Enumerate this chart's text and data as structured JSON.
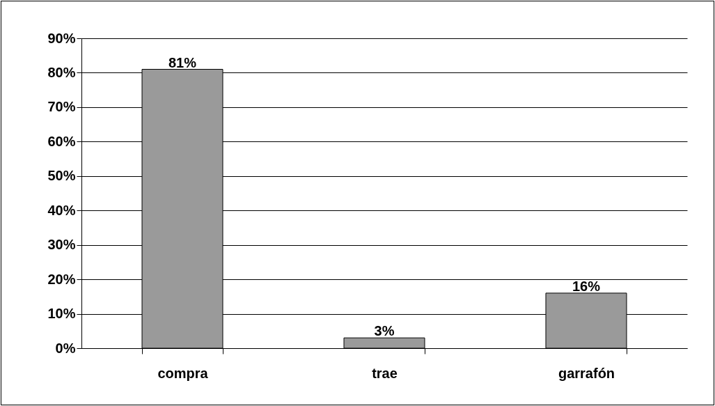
{
  "chart_data": {
    "type": "bar",
    "categories": [
      "compra",
      "trae",
      "garrafón"
    ],
    "values": [
      81,
      3,
      16
    ],
    "value_labels": [
      "81%",
      "3%",
      "16%"
    ],
    "color": "#9a9a9a",
    "ylim": [
      0,
      90
    ],
    "yticks": [
      {
        "value": 0,
        "label": "0%"
      },
      {
        "value": 10,
        "label": "10%"
      },
      {
        "value": 20,
        "label": "20%"
      },
      {
        "value": 30,
        "label": "30%"
      },
      {
        "value": 40,
        "label": "40%"
      },
      {
        "value": 50,
        "label": "50%"
      },
      {
        "value": 60,
        "label": "60%"
      },
      {
        "value": 70,
        "label": "70%"
      },
      {
        "value": 80,
        "label": "80%"
      },
      {
        "value": 90,
        "label": "90%"
      }
    ],
    "grid": "y"
  }
}
